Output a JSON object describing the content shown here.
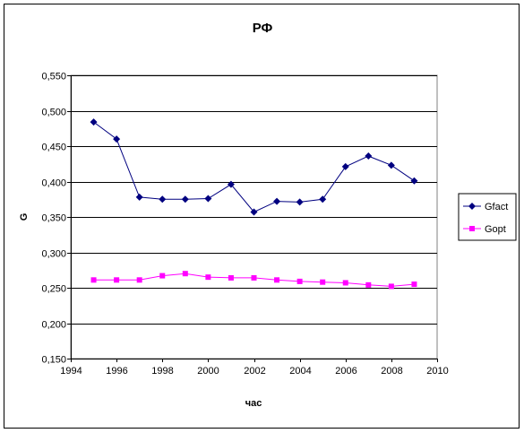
{
  "chart_data": {
    "type": "line",
    "title": "РФ",
    "xlabel": "час",
    "ylabel": "G",
    "xlim": [
      1994,
      2010
    ],
    "ylim": [
      0.15,
      0.55
    ],
    "x_ticks": [
      "1994",
      "1996",
      "1998",
      "2000",
      "2002",
      "2004",
      "2006",
      "2008",
      "2010"
    ],
    "y_ticks": [
      "0,150",
      "0,200",
      "0,250",
      "0,300",
      "0,350",
      "0,400",
      "0,450",
      "0,500",
      "0,550"
    ],
    "grid": "horizontal",
    "legend_position": "right",
    "x": [
      1995,
      1996,
      1997,
      1998,
      1999,
      2000,
      2001,
      2002,
      2003,
      2004,
      2005,
      2006,
      2007,
      2008,
      2009
    ],
    "series": [
      {
        "name": "Gfact",
        "color": "#000080",
        "marker": "diamond",
        "values": [
          0.484,
          0.46,
          0.378,
          0.375,
          0.375,
          0.376,
          0.396,
          0.357,
          0.372,
          0.371,
          0.375,
          0.421,
          0.436,
          0.423,
          0.401
        ]
      },
      {
        "name": "Gopt",
        "color": "#ff00ff",
        "marker": "square",
        "values": [
          0.261,
          0.261,
          0.261,
          0.267,
          0.27,
          0.265,
          0.264,
          0.264,
          0.261,
          0.259,
          0.258,
          0.257,
          0.254,
          0.252,
          0.255
        ]
      }
    ]
  }
}
